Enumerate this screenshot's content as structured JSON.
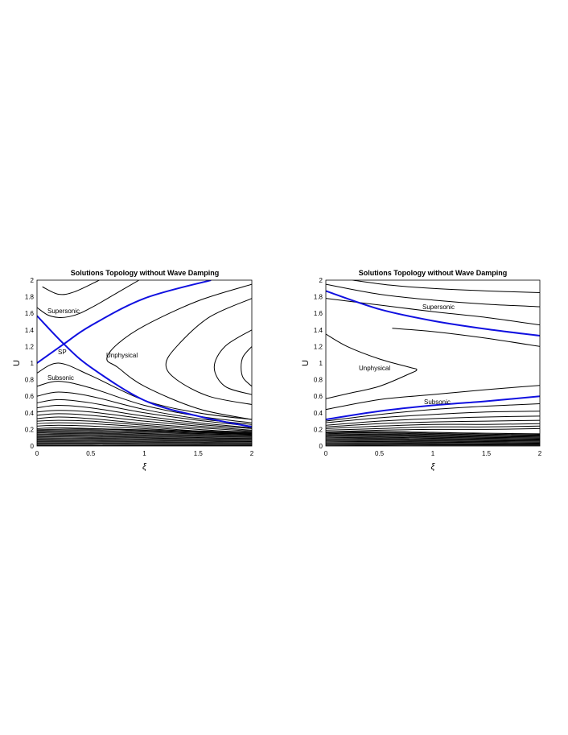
{
  "figure": {
    "panels": [
      {
        "title": "Solutions Topology without Wave Damping",
        "xlabel": "ξ",
        "ylabel": "U",
        "xticks": [
          "0",
          "0.5",
          "1",
          "1.5",
          "2"
        ],
        "yticks": [
          "0",
          "0.2",
          "0.4",
          "0.6",
          "0.8",
          "1",
          "1.2",
          "1.4",
          "1.6",
          "1.8",
          "2"
        ],
        "annotations": {
          "supersonic": "Supersonic",
          "sp": "SP",
          "unphysical": "Unphysical",
          "subsonic": "Subsonic"
        }
      },
      {
        "title": "Solutions Topology without Wave Damping",
        "xlabel": "ξ",
        "ylabel": "U",
        "xticks": [
          "0",
          "0.5",
          "1",
          "1.5",
          "2"
        ],
        "yticks": [
          "0",
          "0.2",
          "0.4",
          "0.6",
          "0.8",
          "1",
          "1.2",
          "1.4",
          "1.6",
          "1.8",
          "2"
        ],
        "annotations": {
          "supersonic": "Supersonic",
          "unphysical": "Unphysical",
          "subsonic": "Subsonic"
        }
      }
    ]
  },
  "chart_data": [
    {
      "type": "line",
      "title": "Solutions Topology without Wave Damping",
      "xlabel": "ξ",
      "ylabel": "U",
      "xlim": [
        0,
        2
      ],
      "ylim": [
        0,
        2
      ],
      "grid": false,
      "colors": {
        "contour": "#000000",
        "critical": "#1010e0"
      },
      "critical_curves": [
        {
          "x": [
            0,
            0.25,
            0.5,
            1.0,
            1.5,
            2.0
          ],
          "y": [
            1.57,
            1.23,
            0.95,
            0.55,
            0.36,
            0.23
          ]
        },
        {
          "x": [
            0,
            0.25,
            0.5,
            1.0,
            1.62
          ],
          "y": [
            1.0,
            1.23,
            1.45,
            1.78,
            2.0
          ]
        }
      ],
      "contours_supersonic": [
        {
          "x": [
            0.05,
            0.2,
            0.35,
            0.58
          ],
          "y": [
            1.92,
            1.83,
            1.86,
            2.0
          ]
        },
        {
          "x": [
            0,
            0.1,
            0.2,
            0.3,
            0.4,
            0.55,
            0.75,
            0.95
          ],
          "y": [
            1.67,
            1.58,
            1.55,
            1.56,
            1.6,
            1.7,
            1.85,
            2.0
          ]
        }
      ],
      "contours_unphysical": [
        {
          "x": [
            2.0,
            1.5,
            1.0,
            0.75,
            0.65,
            0.75,
            1.0,
            1.5,
            2.0
          ],
          "y": [
            0.32,
            0.45,
            0.72,
            0.95,
            1.05,
            1.23,
            1.45,
            1.75,
            1.95
          ]
        },
        {
          "x": [
            2.0,
            1.6,
            1.3,
            1.2,
            1.3,
            1.6,
            2.0
          ],
          "y": [
            0.5,
            0.6,
            0.8,
            0.98,
            1.2,
            1.55,
            1.78
          ]
        },
        {
          "x": [
            2.0,
            1.75,
            1.65,
            1.75,
            2.0
          ],
          "y": [
            0.62,
            0.72,
            0.95,
            1.2,
            1.4
          ]
        },
        {
          "x": [
            2.0,
            1.92,
            1.9,
            1.92,
            2.0
          ],
          "y": [
            0.72,
            0.82,
            0.95,
            1.08,
            1.2
          ]
        }
      ],
      "contours_subsonic": [
        {
          "x": [
            0,
            0.2,
            0.5,
            1.0,
            1.5,
            2.0
          ],
          "y": [
            0.88,
            1.0,
            0.85,
            0.55,
            0.4,
            0.32
          ]
        },
        {
          "x": [
            0,
            0.2,
            0.5,
            1.0,
            1.5,
            2.0
          ],
          "y": [
            0.72,
            0.78,
            0.7,
            0.49,
            0.36,
            0.28
          ]
        },
        {
          "x": [
            0,
            0.2,
            0.5,
            1.0,
            1.5,
            2.0
          ],
          "y": [
            0.6,
            0.65,
            0.6,
            0.44,
            0.33,
            0.26
          ]
        },
        {
          "x": [
            0,
            0.2,
            0.5,
            1.0,
            1.5,
            2.0
          ],
          "y": [
            0.52,
            0.56,
            0.52,
            0.4,
            0.31,
            0.24
          ]
        },
        {
          "x": [
            0,
            0.2,
            0.5,
            1.0,
            1.5,
            2.0
          ],
          "y": [
            0.46,
            0.49,
            0.46,
            0.36,
            0.28,
            0.22
          ]
        },
        {
          "x": [
            0,
            0.2,
            0.5,
            1.0,
            1.5,
            2.0
          ],
          "y": [
            0.41,
            0.43,
            0.41,
            0.33,
            0.26,
            0.21
          ]
        },
        {
          "x": [
            0,
            0.2,
            0.5,
            1.0,
            1.5,
            2.0
          ],
          "y": [
            0.37,
            0.39,
            0.37,
            0.3,
            0.24,
            0.19
          ]
        },
        {
          "x": [
            0,
            0.2,
            0.5,
            1.0,
            1.5,
            2.0
          ],
          "y": [
            0.33,
            0.35,
            0.33,
            0.27,
            0.22,
            0.18
          ]
        },
        {
          "x": [
            0,
            0.2,
            0.5,
            1.0,
            1.5,
            2.0
          ],
          "y": [
            0.3,
            0.31,
            0.3,
            0.25,
            0.2,
            0.16
          ]
        },
        {
          "x": [
            0,
            0.2,
            0.5,
            1.0,
            1.5,
            2.0
          ],
          "y": [
            0.27,
            0.28,
            0.27,
            0.23,
            0.18,
            0.15
          ]
        },
        {
          "x": [
            0,
            0.2,
            0.5,
            1.0,
            1.5,
            2.0
          ],
          "y": [
            0.24,
            0.25,
            0.24,
            0.21,
            0.17,
            0.14
          ]
        },
        {
          "x": [
            0,
            0.2,
            0.5,
            1.0,
            1.5,
            2.0
          ],
          "y": [
            0.21,
            0.22,
            0.21,
            0.19,
            0.15,
            0.13
          ]
        }
      ],
      "dense_band_ylim": [
        0,
        0.2
      ]
    },
    {
      "type": "line",
      "title": "Solutions Topology without Wave Damping",
      "xlabel": "ξ",
      "ylabel": "U",
      "xlim": [
        0,
        2
      ],
      "ylim": [
        0,
        2
      ],
      "grid": false,
      "colors": {
        "contour": "#000000",
        "critical": "#1010e0"
      },
      "critical_curves": [
        {
          "x": [
            0,
            0.5,
            1.0,
            1.5,
            2.0
          ],
          "y": [
            1.87,
            1.65,
            1.51,
            1.41,
            1.33
          ]
        },
        {
          "x": [
            0,
            0.5,
            1.0,
            1.5,
            2.0
          ],
          "y": [
            0.32,
            0.42,
            0.49,
            0.54,
            0.6
          ]
        }
      ],
      "contours_supersonic": [
        {
          "x": [
            0.25,
            0.6,
            1.0,
            1.5,
            2.0
          ],
          "y": [
            2.0,
            1.94,
            1.9,
            1.87,
            1.85
          ]
        },
        {
          "x": [
            0,
            0.5,
            1.0,
            1.5,
            2.0
          ],
          "y": [
            1.95,
            1.83,
            1.76,
            1.71,
            1.68
          ]
        },
        {
          "x": [
            0,
            0.5,
            1.0,
            1.5,
            2.0
          ],
          "y": [
            1.78,
            1.7,
            1.62,
            1.55,
            1.46
          ]
        },
        {
          "x": [
            0.62,
            1.0,
            1.5,
            2.0
          ],
          "y": [
            1.42,
            1.38,
            1.3,
            1.2
          ]
        }
      ],
      "contours_unphysical": [
        {
          "x": [
            0,
            0.2,
            0.5,
            0.78,
            0.85,
            0.78,
            0.5,
            0.2,
            0
          ],
          "y": [
            1.35,
            1.2,
            1.05,
            0.95,
            0.92,
            0.87,
            0.72,
            0.63,
            0.57
          ]
        }
      ],
      "contours_subsonic": [
        {
          "x": [
            0,
            0.5,
            1.0,
            1.5,
            2.0
          ],
          "y": [
            0.44,
            0.56,
            0.62,
            0.68,
            0.73
          ]
        },
        {
          "x": [
            0,
            0.5,
            1.0,
            1.5,
            2.0
          ],
          "y": [
            0.3,
            0.38,
            0.44,
            0.48,
            0.51
          ]
        },
        {
          "x": [
            0,
            0.5,
            1.0,
            1.5,
            2.0
          ],
          "y": [
            0.28,
            0.34,
            0.38,
            0.41,
            0.42
          ]
        },
        {
          "x": [
            0,
            0.5,
            1.0,
            1.5,
            2.0
          ],
          "y": [
            0.25,
            0.3,
            0.33,
            0.35,
            0.36
          ]
        },
        {
          "x": [
            0,
            0.5,
            1.0,
            1.5,
            2.0
          ],
          "y": [
            0.23,
            0.27,
            0.29,
            0.3,
            0.31
          ]
        },
        {
          "x": [
            0,
            0.5,
            1.0,
            1.5,
            2.0
          ],
          "y": [
            0.21,
            0.24,
            0.26,
            0.26,
            0.27
          ]
        },
        {
          "x": [
            0,
            0.5,
            1.0,
            1.5,
            2.0
          ],
          "y": [
            0.19,
            0.21,
            0.23,
            0.23,
            0.24
          ]
        },
        {
          "x": [
            0,
            0.5,
            1.0,
            1.5,
            2.0
          ],
          "y": [
            0.17,
            0.19,
            0.2,
            0.2,
            0.21
          ]
        }
      ],
      "dense_band_ylim": [
        0,
        0.17
      ]
    }
  ]
}
